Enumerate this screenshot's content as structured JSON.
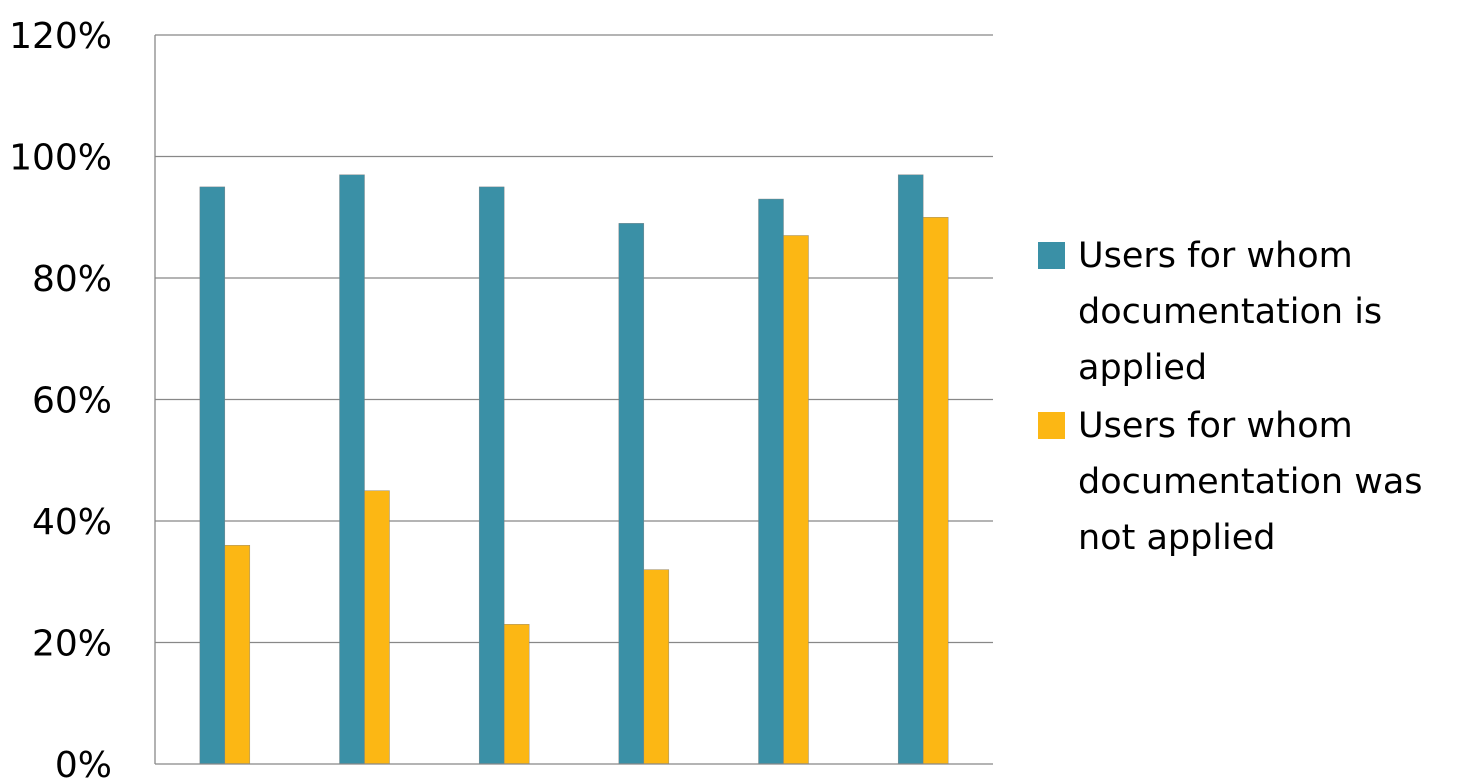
{
  "chart_data": {
    "type": "bar",
    "categories": [
      "",
      "",
      "",
      "",
      "",
      ""
    ],
    "series": [
      {
        "name": "Users for whom documentation is applied",
        "color": "#3a90a6",
        "values": [
          95,
          97,
          95,
          89,
          93,
          97
        ]
      },
      {
        "name": "Users for whom documentation was not applied",
        "color": "#fcb714",
        "values": [
          36,
          45,
          23,
          32,
          87,
          90
        ]
      }
    ],
    "title": "",
    "xlabel": "",
    "ylabel": "",
    "ylim": [
      0,
      120
    ],
    "yticks": [
      "0%",
      "20%",
      "40%",
      "60%",
      "80%",
      "100%",
      "120%"
    ],
    "grid": true,
    "legend_position": "right"
  }
}
